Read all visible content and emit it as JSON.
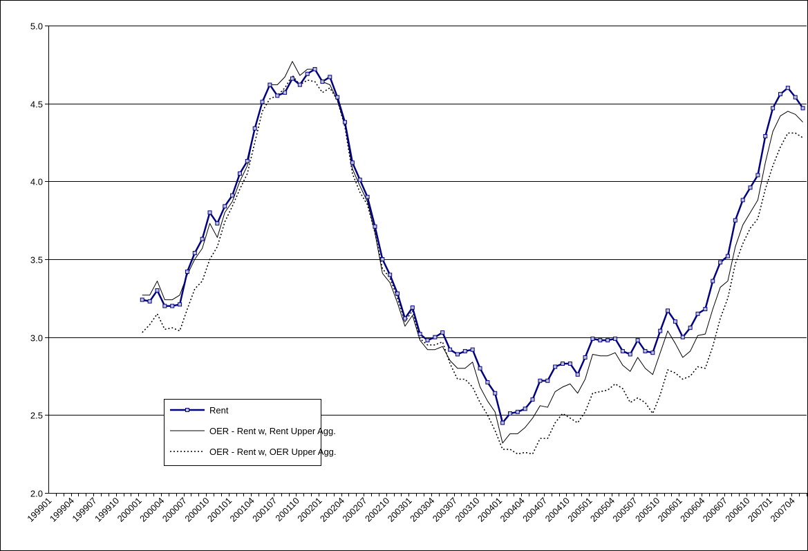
{
  "chart_data": {
    "type": "line",
    "categories": [
      "199901",
      null,
      null,
      "199904",
      null,
      null,
      "199907",
      null,
      null,
      "199910",
      null,
      null,
      "200001",
      null,
      null,
      "200004",
      null,
      null,
      "200007",
      null,
      null,
      "200010",
      null,
      null,
      "200101",
      null,
      null,
      "200104",
      null,
      null,
      "200107",
      null,
      null,
      "200110",
      null,
      null,
      "200201",
      null,
      null,
      "200204",
      null,
      null,
      "200207",
      null,
      null,
      "200210",
      null,
      null,
      "200301",
      null,
      null,
      "200304",
      null,
      null,
      "200307",
      null,
      null,
      "200310",
      null,
      null,
      "200401",
      null,
      null,
      "200404",
      null,
      null,
      "200407",
      null,
      null,
      "200410",
      null,
      null,
      "200501",
      null,
      null,
      "200504",
      null,
      null,
      "200507",
      null,
      null,
      "200510",
      null,
      null,
      "200601",
      null,
      null,
      "200604",
      null,
      null,
      "200607",
      null,
      null,
      "200610",
      null,
      null,
      "200701",
      null,
      null,
      "200704",
      null
    ],
    "series": [
      {
        "name": "Rent",
        "color": "#000080",
        "style": "solid-marker",
        "values": [
          null,
          null,
          null,
          null,
          null,
          null,
          null,
          null,
          null,
          null,
          null,
          null,
          3.24,
          3.23,
          3.3,
          3.2,
          3.2,
          3.21,
          3.42,
          3.54,
          3.63,
          3.8,
          3.73,
          3.84,
          3.91,
          4.05,
          4.13,
          4.34,
          4.51,
          4.62,
          4.55,
          4.57,
          4.66,
          4.62,
          4.69,
          4.72,
          4.64,
          4.67,
          4.54,
          4.38,
          4.12,
          4.01,
          3.9,
          3.71,
          3.5,
          3.4,
          3.28,
          3.12,
          3.19,
          3.02,
          2.98,
          3.0,
          3.03,
          2.92,
          2.89,
          2.91,
          2.92,
          2.8,
          2.71,
          2.64,
          2.45,
          2.51,
          2.52,
          2.54,
          2.6,
          2.72,
          2.72,
          2.81,
          2.83,
          2.83,
          2.76,
          2.87,
          2.99,
          2.98,
          2.98,
          2.99,
          2.91,
          2.89,
          2.98,
          2.91,
          2.9,
          3.04,
          3.17,
          3.1,
          3.0,
          3.06,
          3.15,
          3.18,
          3.36,
          3.48,
          3.52,
          3.75,
          3.88,
          3.96,
          4.04,
          4.29,
          4.47,
          4.56,
          4.6,
          4.54,
          4.47
        ]
      },
      {
        "name": "OER - Rent w, Rent Upper Agg.",
        "color": "#000000",
        "style": "solid",
        "values": [
          null,
          null,
          null,
          null,
          null,
          null,
          null,
          null,
          null,
          null,
          null,
          null,
          3.27,
          3.27,
          3.36,
          3.24,
          3.24,
          3.27,
          3.4,
          3.5,
          3.57,
          3.73,
          3.64,
          3.8,
          3.87,
          4.0,
          4.1,
          4.34,
          4.5,
          4.62,
          4.62,
          4.67,
          4.77,
          4.68,
          4.72,
          4.72,
          4.64,
          4.62,
          4.52,
          4.36,
          4.08,
          3.97,
          3.87,
          3.67,
          3.41,
          3.35,
          3.22,
          3.07,
          3.14,
          2.98,
          2.92,
          2.92,
          2.94,
          2.85,
          2.8,
          2.8,
          2.84,
          2.68,
          2.59,
          2.52,
          2.32,
          2.38,
          2.38,
          2.42,
          2.48,
          2.56,
          2.55,
          2.65,
          2.68,
          2.7,
          2.64,
          2.73,
          2.89,
          2.88,
          2.88,
          2.9,
          2.82,
          2.78,
          2.87,
          2.8,
          2.76,
          2.9,
          3.04,
          2.96,
          2.87,
          2.91,
          3.01,
          3.02,
          3.18,
          3.32,
          3.36,
          3.58,
          3.72,
          3.8,
          3.88,
          4.12,
          4.32,
          4.42,
          4.45,
          4.43,
          4.38
        ]
      },
      {
        "name": "OER - Rent w, OER Upper Agg.",
        "color": "#000000",
        "style": "dotted",
        "values": [
          null,
          null,
          null,
          null,
          null,
          null,
          null,
          null,
          null,
          null,
          null,
          null,
          3.03,
          3.08,
          3.15,
          3.05,
          3.06,
          3.04,
          3.18,
          3.31,
          3.36,
          3.5,
          3.58,
          3.74,
          3.84,
          3.95,
          4.05,
          4.25,
          4.45,
          4.53,
          4.55,
          4.6,
          4.68,
          4.62,
          4.65,
          4.64,
          4.57,
          4.6,
          4.52,
          4.35,
          4.05,
          3.93,
          3.85,
          3.67,
          3.44,
          3.38,
          3.25,
          3.1,
          3.17,
          2.99,
          2.95,
          2.95,
          2.97,
          2.83,
          2.73,
          2.73,
          2.68,
          2.58,
          2.5,
          2.4,
          2.28,
          2.28,
          2.25,
          2.26,
          2.25,
          2.35,
          2.35,
          2.45,
          2.51,
          2.48,
          2.45,
          2.52,
          2.64,
          2.65,
          2.66,
          2.7,
          2.67,
          2.58,
          2.61,
          2.58,
          2.51,
          2.63,
          2.79,
          2.77,
          2.73,
          2.75,
          2.81,
          2.8,
          2.94,
          3.12,
          3.25,
          3.47,
          3.6,
          3.7,
          3.76,
          3.95,
          4.1,
          4.22,
          4.31,
          4.31,
          4.28
        ]
      }
    ],
    "ylim": [
      2,
      5
    ],
    "yticks": [
      {
        "value": 2,
        "label": "2.0"
      },
      {
        "value": 2.5,
        "label": "2.5"
      },
      {
        "value": 3,
        "label": "3.0"
      },
      {
        "value": 3.5,
        "label": "3.5"
      },
      {
        "value": 4,
        "label": "4.0"
      },
      {
        "value": 4.5,
        "label": "4.5"
      },
      {
        "value": 5,
        "label": "5.0"
      }
    ],
    "grid": true
  }
}
